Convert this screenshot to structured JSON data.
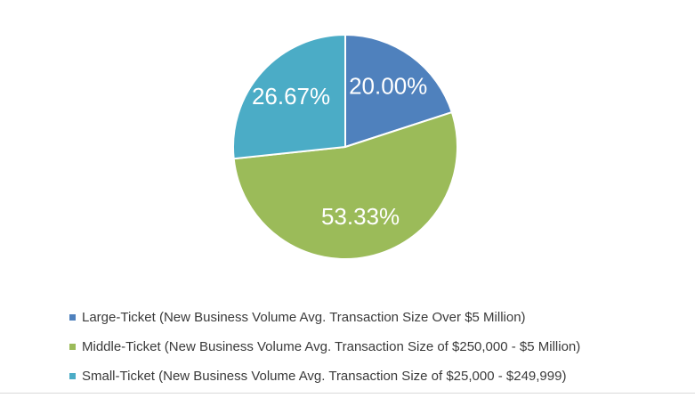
{
  "chart_data": {
    "type": "pie",
    "categories": [
      "Large-Ticket (New Business Volume Avg. Transaction Size Over $5 Million)",
      "Middle-Ticket (New Business Volume Avg. Transaction Size of $250,000 - $5 Million)",
      "Small-Ticket (New Business Volume Avg. Transaction Size of $25,000 - $249,999)"
    ],
    "values": [
      20.0,
      53.33,
      26.67
    ],
    "data_labels": [
      "20.00%",
      "53.33%",
      "26.67%"
    ],
    "colors": [
      "#4f81bd",
      "#9bbb59",
      "#4bacc6"
    ],
    "start_angle_deg": 0,
    "direction": "clockwise",
    "legend_position": "bottom-left"
  }
}
